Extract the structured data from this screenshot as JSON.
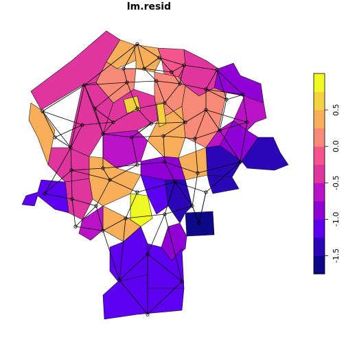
{
  "title": "lm.resid",
  "legend": {
    "ticks": [
      "0.5",
      "0.0",
      "-0.5",
      "-1.0",
      "-1.5"
    ],
    "tick_values": [
      0.5,
      0.0,
      -0.5,
      -1.0,
      -1.5
    ],
    "range": [
      -1.75,
      1.0
    ],
    "palette": [
      "#0D0887",
      "#2A06B6",
      "#5D00F0",
      "#8F00D5",
      "#BA13C7",
      "#E0359E",
      "#F4558C",
      "#F98A78",
      "#F9AF59",
      "#F4D23F",
      "#F0F921"
    ]
  },
  "chart_data": {
    "type": "choropleth",
    "title": "lm.resid",
    "legend_placement": "right",
    "value_range": [
      -1.75,
      1.0
    ],
    "note": "neighbourhood graph overlaid on regions"
  }
}
